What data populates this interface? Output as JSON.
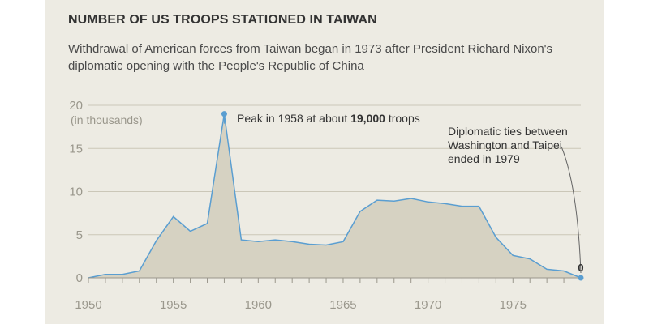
{
  "chart_data": {
    "type": "area",
    "title": "NUMBER OF US TROOPS STATIONED IN TAIWAN",
    "subtitle": "Withdrawal of American forces from Taiwan began in 1973 after President Richard Nixon's diplomatic opening with the People's Republic of China",
    "ylabel": "(in thousands)",
    "xlim": [
      1950,
      1979
    ],
    "ylim": [
      0,
      20
    ],
    "y_ticks": [
      0,
      5,
      10,
      15,
      20
    ],
    "x_ticks": [
      1950,
      1955,
      1960,
      1965,
      1970,
      1975
    ],
    "grid": true,
    "series": [
      {
        "x": [
          1950,
          1951,
          1952,
          1953,
          1954,
          1955,
          1956,
          1957,
          1958,
          1959,
          1960,
          1961,
          1962,
          1963,
          1964,
          1965,
          1966,
          1967,
          1968,
          1969,
          1970,
          1971,
          1972,
          1973,
          1974,
          1975,
          1976,
          1977,
          1978,
          1979
        ],
        "values": [
          0.0,
          0.4,
          0.4,
          0.8,
          4.3,
          7.1,
          5.4,
          6.3,
          19.0,
          4.4,
          4.2,
          4.4,
          4.2,
          3.9,
          3.8,
          4.2,
          7.7,
          9.0,
          8.9,
          9.2,
          8.8,
          8.6,
          8.3,
          8.3,
          4.7,
          2.6,
          2.2,
          1.0,
          0.8,
          0.0
        ]
      }
    ],
    "annotations": {
      "peak_prefix": "Peak in 1958 at about ",
      "peak_bold": "19,000",
      "peak_suffix": " troops",
      "ties_lines": [
        "Diplomatic ties between",
        "Washington and Taipei",
        "ended in 1979"
      ],
      "end_value_label": "0"
    },
    "colors": {
      "line": "#5a9ed1",
      "fill": "#d6d2c2",
      "grid": "#cbc7b8",
      "axis_text": "#9a978c",
      "annotation_text": "#333333"
    }
  }
}
